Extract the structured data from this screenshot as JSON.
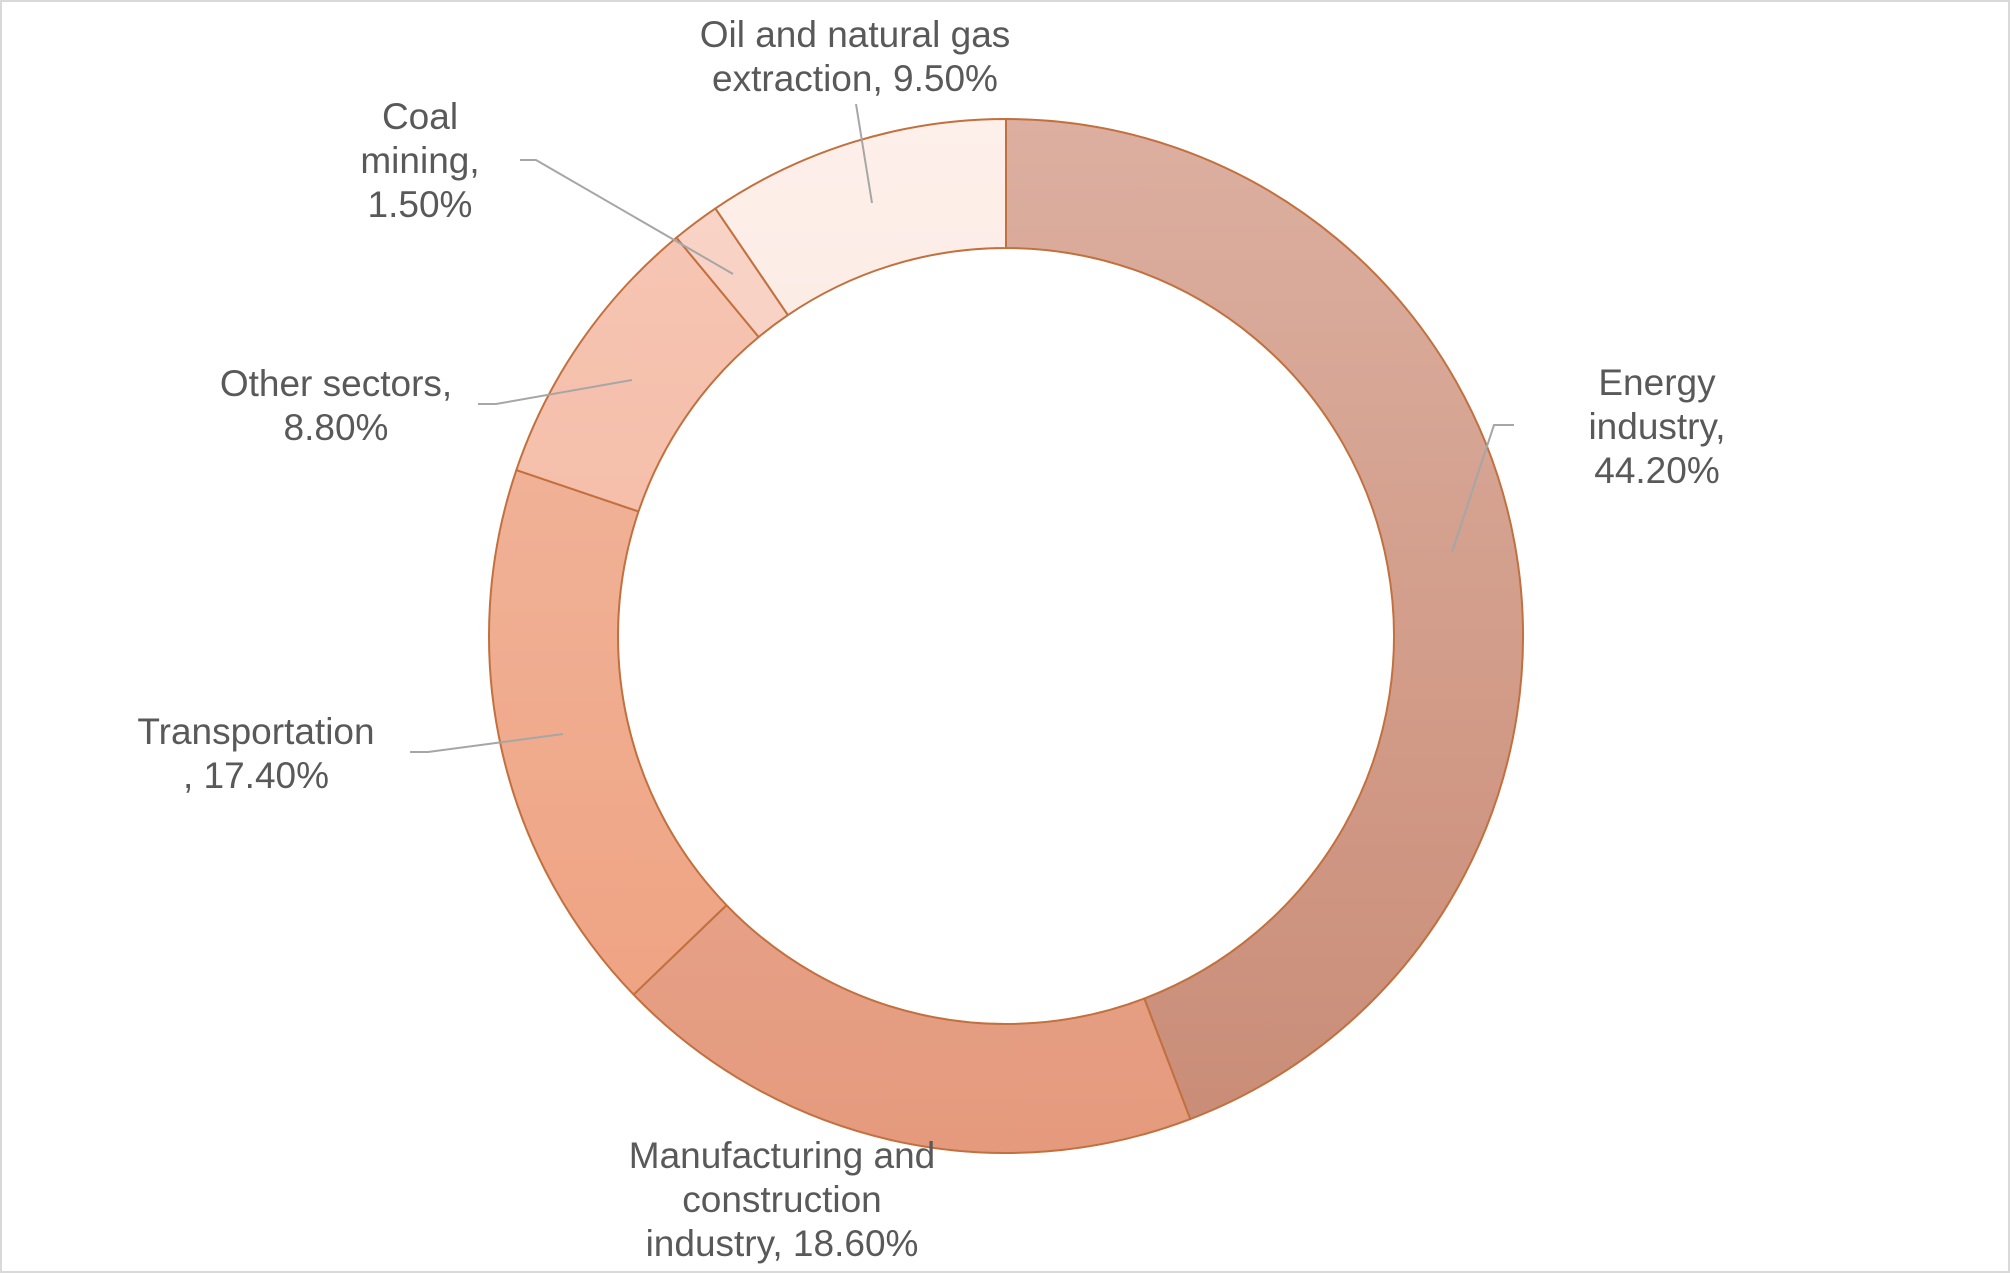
{
  "chart_data": {
    "type": "pie",
    "style": "donut",
    "title": "",
    "slices": [
      {
        "name": "Energy industry",
        "value": 44.2,
        "label_lines": [
          "Energy",
          "industry,",
          "44.20%"
        ],
        "color_top": "#dcafa0",
        "color_bottom": "#c98c76"
      },
      {
        "name": "Manufacturing and construction industry",
        "value": 18.6,
        "label_lines": [
          "Manufacturing and",
          "construction",
          "industry, 18.60%"
        ],
        "color_top": "#e7b4a2",
        "color_bottom": "#e59a7d"
      },
      {
        "name": "Transportation",
        "value": 17.4,
        "label_lines": [
          "Transportation",
          ", 17.40%"
        ],
        "color_top": "#f2baa3",
        "color_bottom": "#eea07e"
      },
      {
        "name": "Other sectors",
        "value": 8.8,
        "label_lines": [
          "Other sectors,",
          "8.80%"
        ],
        "color_top": "#f6c7b6",
        "color_bottom": "#f3b197"
      },
      {
        "name": "Coal mining",
        "value": 1.5,
        "label_lines": [
          "Coal",
          "mining,",
          "1.50%"
        ],
        "color_top": "#f8d4c7",
        "color_bottom": "#f6c9b8"
      },
      {
        "name": "Oil and natural gas extraction",
        "value": 9.5,
        "label_lines": [
          "Oil and natural gas",
          "extraction, 9.50%"
        ],
        "color_top": "#fdefea",
        "color_bottom": "#fbe0d5"
      }
    ],
    "colors": {
      "edge": "#c2703e",
      "leader": "#a6a6a6",
      "label_text": "#595959",
      "frame": "#d9d9d9"
    }
  }
}
